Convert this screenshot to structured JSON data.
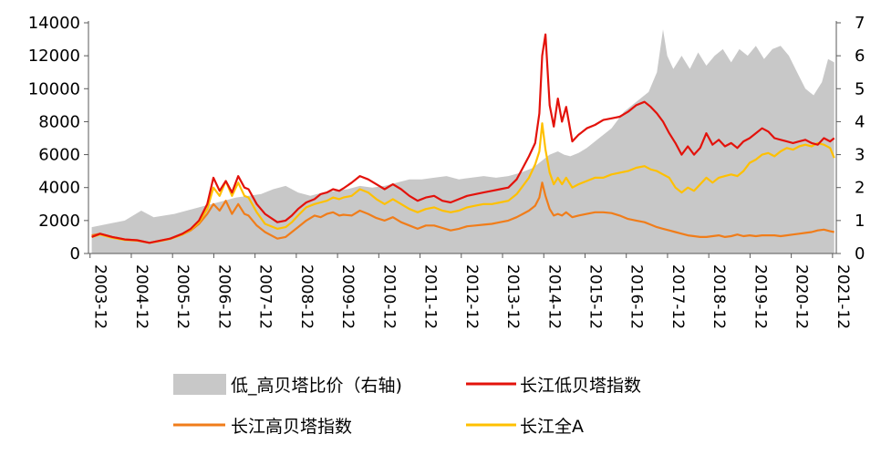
{
  "chart_data": {
    "type": "line",
    "title": "",
    "xlabel": "",
    "ylabel": "",
    "x_ticks": [
      "2003-12",
      "2004-12",
      "2005-12",
      "2006-12",
      "2007-12",
      "2008-12",
      "2009-12",
      "2010-12",
      "2011-12",
      "2012-12",
      "2013-12",
      "2014-12",
      "2015-12",
      "2016-12",
      "2017-12",
      "2018-12",
      "2019-12",
      "2020-12",
      "2021-12"
    ],
    "xlim": [
      2003.92,
      2022.05
    ],
    "ylim_left": [
      0,
      14000
    ],
    "yticks_left": [
      "0",
      "2000",
      "4000",
      "6000",
      "8000",
      "10000",
      "12000",
      "14000"
    ],
    "ylim_right": [
      0,
      7
    ],
    "yticks_right": [
      "0",
      "1",
      "2",
      "3",
      "4",
      "5",
      "6",
      "7"
    ],
    "grid": false,
    "legend_position": "bottom",
    "legend": [
      {
        "key": "ratio",
        "label": "低_高贝塔比价（右轴)"
      },
      {
        "key": "low",
        "label": "长江低贝塔指数"
      },
      {
        "key": "high",
        "label": "长江高贝塔指数"
      },
      {
        "key": "all",
        "label": "长江全A"
      }
    ],
    "colors": {
      "ratio": "#c8c8c8",
      "low": "#e3120b",
      "high": "#f07d1a",
      "all": "#ffc000"
    },
    "series": [
      {
        "name": "低_高贝塔比价（右轴)",
        "key": "ratio",
        "axis": "right",
        "kind": "area",
        "x": [
          2004.0,
          2004.8,
          2005.2,
          2005.5,
          2006.0,
          2006.3,
          2006.6,
          2006.9,
          2007.2,
          2007.5,
          2007.8,
          2008.1,
          2008.4,
          2008.7,
          2009.0,
          2009.3,
          2009.6,
          2009.9,
          2010.2,
          2010.5,
          2010.8,
          2011.1,
          2011.4,
          2011.7,
          2012.0,
          2012.3,
          2012.6,
          2012.9,
          2013.2,
          2013.5,
          2013.8,
          2014.1,
          2014.4,
          2014.7,
          2014.9,
          2015.1,
          2015.3,
          2015.45,
          2015.6,
          2015.8,
          2016.0,
          2016.3,
          2016.6,
          2016.9,
          2017.2,
          2017.5,
          2017.7,
          2017.85,
          2017.95,
          2018.1,
          2018.3,
          2018.5,
          2018.7,
          2018.9,
          2019.1,
          2019.3,
          2019.5,
          2019.7,
          2019.9,
          2020.1,
          2020.3,
          2020.5,
          2020.7,
          2020.9,
          2021.1,
          2021.3,
          2021.5,
          2021.7,
          2021.85,
          2022.0
        ],
        "values": [
          0.8,
          1.0,
          1.3,
          1.1,
          1.2,
          1.3,
          1.4,
          1.5,
          1.6,
          1.7,
          1.75,
          1.8,
          1.95,
          2.05,
          1.85,
          1.75,
          1.85,
          1.9,
          1.95,
          2.05,
          2.0,
          2.05,
          2.15,
          2.25,
          2.25,
          2.3,
          2.35,
          2.25,
          2.3,
          2.35,
          2.3,
          2.35,
          2.45,
          2.6,
          2.8,
          3.0,
          3.1,
          3.0,
          2.95,
          3.05,
          3.2,
          3.5,
          3.8,
          4.3,
          4.6,
          4.9,
          5.5,
          6.8,
          6.0,
          5.6,
          6.0,
          5.6,
          6.1,
          5.7,
          6.0,
          6.2,
          5.8,
          6.2,
          6.0,
          6.3,
          5.9,
          6.2,
          6.3,
          6.0,
          5.5,
          5.0,
          4.8,
          5.2,
          5.9,
          5.8
        ]
      },
      {
        "name": "长江低贝塔指数",
        "key": "low",
        "axis": "left",
        "kind": "line",
        "x": [
          2004.0,
          2004.2,
          2004.5,
          2004.8,
          2005.1,
          2005.4,
          2005.6,
          2005.9,
          2006.2,
          2006.4,
          2006.6,
          2006.8,
          2006.95,
          2007.1,
          2007.25,
          2007.4,
          2007.55,
          2007.7,
          2007.8,
          2008.0,
          2008.2,
          2008.5,
          2008.7,
          2008.85,
          2009.0,
          2009.2,
          2009.4,
          2009.55,
          2009.7,
          2009.85,
          2010.0,
          2010.1,
          2010.3,
          2010.5,
          2010.7,
          2010.9,
          2011.1,
          2011.3,
          2011.5,
          2011.7,
          2011.9,
          2012.1,
          2012.3,
          2012.5,
          2012.7,
          2012.9,
          2013.1,
          2013.3,
          2013.5,
          2013.7,
          2013.9,
          2014.1,
          2014.3,
          2014.45,
          2014.6,
          2014.75,
          2014.85,
          2014.92,
          2015.0,
          2015.1,
          2015.2,
          2015.3,
          2015.4,
          2015.5,
          2015.65,
          2015.8,
          2016.0,
          2016.2,
          2016.4,
          2016.6,
          2016.8,
          2017.0,
          2017.2,
          2017.4,
          2017.55,
          2017.7,
          2017.85,
          2018.0,
          2018.15,
          2018.3,
          2018.45,
          2018.6,
          2018.75,
          2018.9,
          2019.05,
          2019.2,
          2019.35,
          2019.5,
          2019.65,
          2019.8,
          2019.95,
          2020.1,
          2020.25,
          2020.4,
          2020.55,
          2020.7,
          2020.85,
          2021.0,
          2021.15,
          2021.3,
          2021.45,
          2021.6,
          2021.75,
          2021.9,
          2022.0
        ],
        "values": [
          1000,
          1200,
          1000,
          850,
          800,
          650,
          750,
          900,
          1200,
          1500,
          2000,
          3000,
          4600,
          3800,
          4400,
          3700,
          4700,
          4000,
          3900,
          3000,
          2400,
          1900,
          2000,
          2300,
          2700,
          3100,
          3300,
          3600,
          3700,
          3900,
          3800,
          3950,
          4300,
          4700,
          4500,
          4200,
          3900,
          4200,
          3900,
          3500,
          3200,
          3400,
          3500,
          3200,
          3100,
          3300,
          3500,
          3600,
          3700,
          3800,
          3900,
          4000,
          4500,
          5200,
          5900,
          6700,
          8500,
          12000,
          13300,
          9000,
          7700,
          9400,
          8000,
          8900,
          6800,
          7200,
          7600,
          7800,
          8100,
          8200,
          8300,
          8600,
          9000,
          9200,
          8900,
          8500,
          8000,
          7300,
          6700,
          6000,
          6500,
          6000,
          6400,
          7300,
          6600,
          6900,
          6500,
          6700,
          6400,
          6800,
          7000,
          7300,
          7600,
          7400,
          7000,
          6900,
          6800,
          6700,
          6800,
          6900,
          6700,
          6600,
          7000,
          6800,
          7000
        ]
      },
      {
        "name": "长江高贝塔指数",
        "key": "high",
        "axis": "left",
        "kind": "line",
        "x": [
          2004.0,
          2004.2,
          2004.5,
          2004.8,
          2005.1,
          2005.4,
          2005.6,
          2005.9,
          2006.2,
          2006.4,
          2006.6,
          2006.8,
          2006.95,
          2007.1,
          2007.25,
          2007.4,
          2007.55,
          2007.7,
          2007.8,
          2008.0,
          2008.2,
          2008.5,
          2008.7,
          2008.85,
          2009.0,
          2009.2,
          2009.4,
          2009.55,
          2009.7,
          2009.85,
          2010.0,
          2010.1,
          2010.3,
          2010.5,
          2010.7,
          2010.9,
          2011.1,
          2011.3,
          2011.5,
          2011.7,
          2011.9,
          2012.1,
          2012.3,
          2012.5,
          2012.7,
          2012.9,
          2013.1,
          2013.3,
          2013.5,
          2013.7,
          2013.9,
          2014.1,
          2014.3,
          2014.45,
          2014.6,
          2014.75,
          2014.85,
          2014.92,
          2015.0,
          2015.1,
          2015.2,
          2015.3,
          2015.4,
          2015.5,
          2015.65,
          2015.8,
          2016.0,
          2016.2,
          2016.4,
          2016.6,
          2016.8,
          2017.0,
          2017.2,
          2017.4,
          2017.55,
          2017.7,
          2017.85,
          2018.0,
          2018.15,
          2018.3,
          2018.45,
          2018.6,
          2018.75,
          2018.9,
          2019.05,
          2019.2,
          2019.35,
          2019.5,
          2019.65,
          2019.8,
          2019.95,
          2020.1,
          2020.25,
          2020.4,
          2020.55,
          2020.7,
          2020.85,
          2021.0,
          2021.15,
          2021.3,
          2021.45,
          2021.6,
          2021.75,
          2021.9,
          2022.0
        ],
        "values": [
          1100,
          1200,
          1000,
          850,
          800,
          650,
          750,
          900,
          1150,
          1400,
          1800,
          2400,
          3000,
          2600,
          3200,
          2400,
          3000,
          2400,
          2300,
          1700,
          1300,
          900,
          1000,
          1300,
          1600,
          2000,
          2300,
          2200,
          2400,
          2500,
          2300,
          2350,
          2300,
          2600,
          2400,
          2150,
          2000,
          2200,
          1900,
          1700,
          1500,
          1700,
          1700,
          1550,
          1400,
          1500,
          1650,
          1700,
          1750,
          1800,
          1900,
          2000,
          2200,
          2400,
          2600,
          2900,
          3400,
          4300,
          3500,
          2700,
          2300,
          2400,
          2300,
          2500,
          2200,
          2300,
          2400,
          2500,
          2500,
          2450,
          2300,
          2100,
          2000,
          1900,
          1750,
          1600,
          1500,
          1400,
          1300,
          1200,
          1100,
          1050,
          1000,
          1000,
          1050,
          1100,
          1000,
          1050,
          1150,
          1050,
          1100,
          1050,
          1100,
          1100,
          1100,
          1050,
          1100,
          1150,
          1200,
          1250,
          1300,
          1400,
          1450,
          1350,
          1300
        ]
      },
      {
        "name": "长江全A",
        "key": "all",
        "axis": "left",
        "kind": "line",
        "x": [
          2004.0,
          2004.2,
          2004.5,
          2004.8,
          2005.1,
          2005.4,
          2005.6,
          2005.9,
          2006.2,
          2006.4,
          2006.6,
          2006.8,
          2006.95,
          2007.1,
          2007.25,
          2007.4,
          2007.55,
          2007.7,
          2007.8,
          2008.0,
          2008.2,
          2008.5,
          2008.7,
          2008.85,
          2009.0,
          2009.2,
          2009.4,
          2009.55,
          2009.7,
          2009.85,
          2010.0,
          2010.1,
          2010.3,
          2010.5,
          2010.7,
          2010.9,
          2011.1,
          2011.3,
          2011.5,
          2011.7,
          2011.9,
          2012.1,
          2012.3,
          2012.5,
          2012.7,
          2012.9,
          2013.1,
          2013.3,
          2013.5,
          2013.7,
          2013.9,
          2014.1,
          2014.3,
          2014.45,
          2014.6,
          2014.75,
          2014.85,
          2014.92,
          2015.0,
          2015.1,
          2015.2,
          2015.3,
          2015.4,
          2015.5,
          2015.65,
          2015.8,
          2016.0,
          2016.2,
          2016.4,
          2016.6,
          2016.8,
          2017.0,
          2017.2,
          2017.4,
          2017.55,
          2017.7,
          2017.85,
          2018.0,
          2018.15,
          2018.3,
          2018.45,
          2018.6,
          2018.75,
          2018.9,
          2019.05,
          2019.2,
          2019.35,
          2019.5,
          2019.65,
          2019.8,
          2019.95,
          2020.1,
          2020.25,
          2020.4,
          2020.55,
          2020.7,
          2020.85,
          2021.0,
          2021.15,
          2021.3,
          2021.45,
          2021.6,
          2021.75,
          2021.9,
          2022.0
        ],
        "values": [
          1000,
          1150,
          950,
          820,
          780,
          650,
          730,
          880,
          1150,
          1450,
          1900,
          2700,
          4000,
          3500,
          4400,
          3500,
          4300,
          3500,
          3400,
          2500,
          1800,
          1500,
          1600,
          1900,
          2300,
          2800,
          3000,
          3100,
          3200,
          3400,
          3300,
          3400,
          3500,
          3900,
          3700,
          3300,
          3000,
          3300,
          3000,
          2700,
          2500,
          2700,
          2800,
          2600,
          2500,
          2600,
          2800,
          2900,
          3000,
          3000,
          3100,
          3200,
          3600,
          4100,
          4600,
          5400,
          6200,
          7900,
          6300,
          4900,
          4200,
          4600,
          4200,
          4600,
          4000,
          4200,
          4400,
          4600,
          4600,
          4800,
          4900,
          5000,
          5200,
          5300,
          5100,
          5000,
          4800,
          4600,
          4000,
          3700,
          4000,
          3800,
          4200,
          4600,
          4300,
          4600,
          4700,
          4800,
          4700,
          5000,
          5500,
          5700,
          6000,
          6100,
          5900,
          6200,
          6400,
          6300,
          6500,
          6600,
          6500,
          6700,
          6600,
          6400,
          5800
        ]
      }
    ]
  }
}
